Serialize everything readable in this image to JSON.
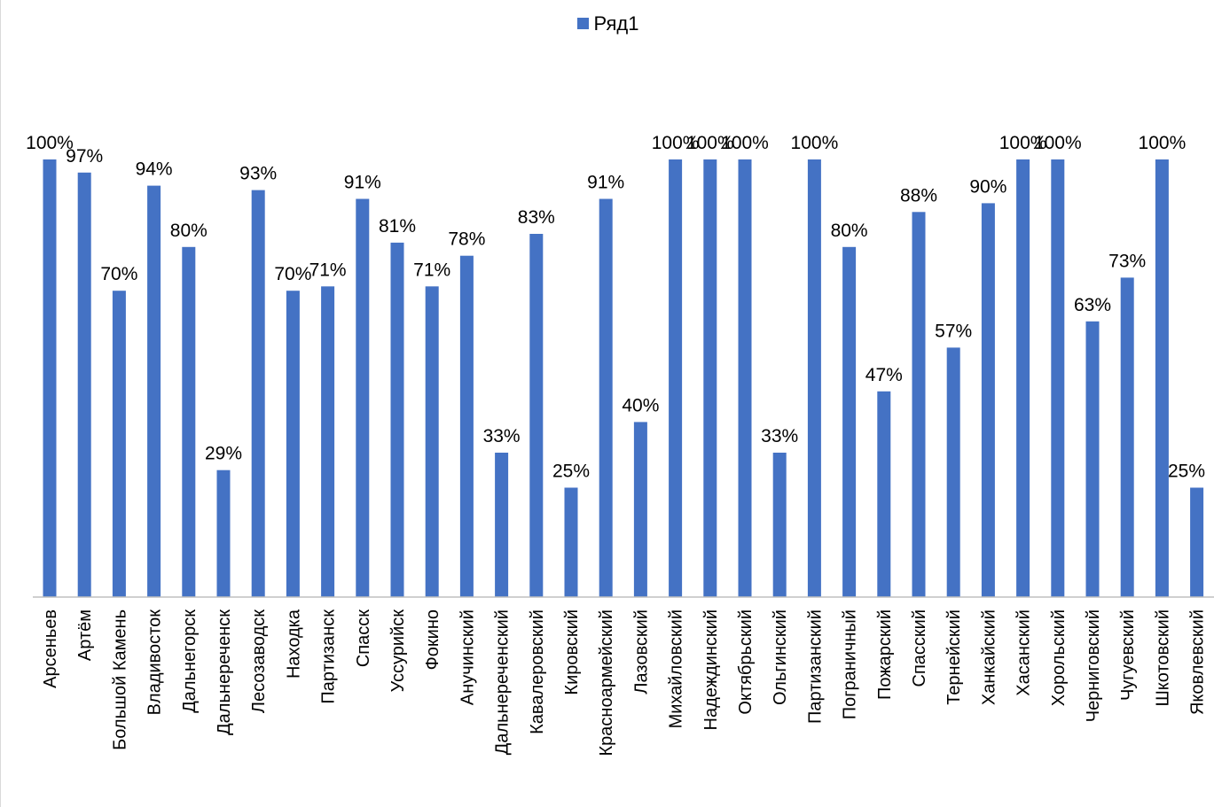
{
  "chart_data": {
    "type": "bar",
    "title": "",
    "xlabel": "",
    "ylabel": "",
    "ylim": [
      0,
      1
    ],
    "legend": "top-center",
    "grid": false,
    "colors": {
      "series": "#4472C4",
      "axis": "#bfbfbf"
    },
    "categories": [
      "Арсеньев",
      "Артём",
      "Большой Камень",
      "Владивосток",
      "Дальнегорск",
      "Дальнереченск",
      "Лесозаводск",
      "Находка",
      "Партизанск",
      "Спасск",
      "Уссурийск",
      "Фокино",
      "Анучинский",
      "Дальнереченский",
      "Кавалеровский",
      "Кировский",
      "Красноармейский",
      "Лазовский",
      "Михайловский",
      "Надеждинский",
      "Октябрьский",
      "Ольгинский",
      "Партизанский",
      "Пограничный",
      "Пожарский",
      "Спасский",
      "Тернейский",
      "Ханкайский",
      "Хасанский",
      "Хорольский",
      "Черниговский",
      "Чугуевский",
      "Шкотовский",
      "Яковлевский"
    ],
    "series": [
      {
        "name": "Ряд1",
        "values": [
          1.0,
          0.97,
          0.7,
          0.94,
          0.8,
          0.29,
          0.93,
          0.7,
          0.71,
          0.91,
          0.81,
          0.71,
          0.78,
          0.33,
          0.83,
          0.25,
          0.91,
          0.4,
          1.0,
          1.0,
          1.0,
          0.33,
          1.0,
          0.8,
          0.47,
          0.88,
          0.57,
          0.9,
          1.0,
          1.0,
          0.63,
          0.73,
          1.0,
          0.25
        ],
        "labels": [
          "100%",
          "97%",
          "70%",
          "94%",
          "80%",
          "29%",
          "93%",
          "70%",
          "71%",
          "91%",
          "81%",
          "71%",
          "78%",
          "33%",
          "83%",
          "25%",
          "91%",
          "40%",
          "100%",
          "100%",
          "100%",
          "33%",
          "100%",
          "80%",
          "47%",
          "88%",
          "57%",
          "90%",
          "100%",
          "100%",
          "63%",
          "73%",
          "100%",
          "25%"
        ]
      }
    ]
  }
}
